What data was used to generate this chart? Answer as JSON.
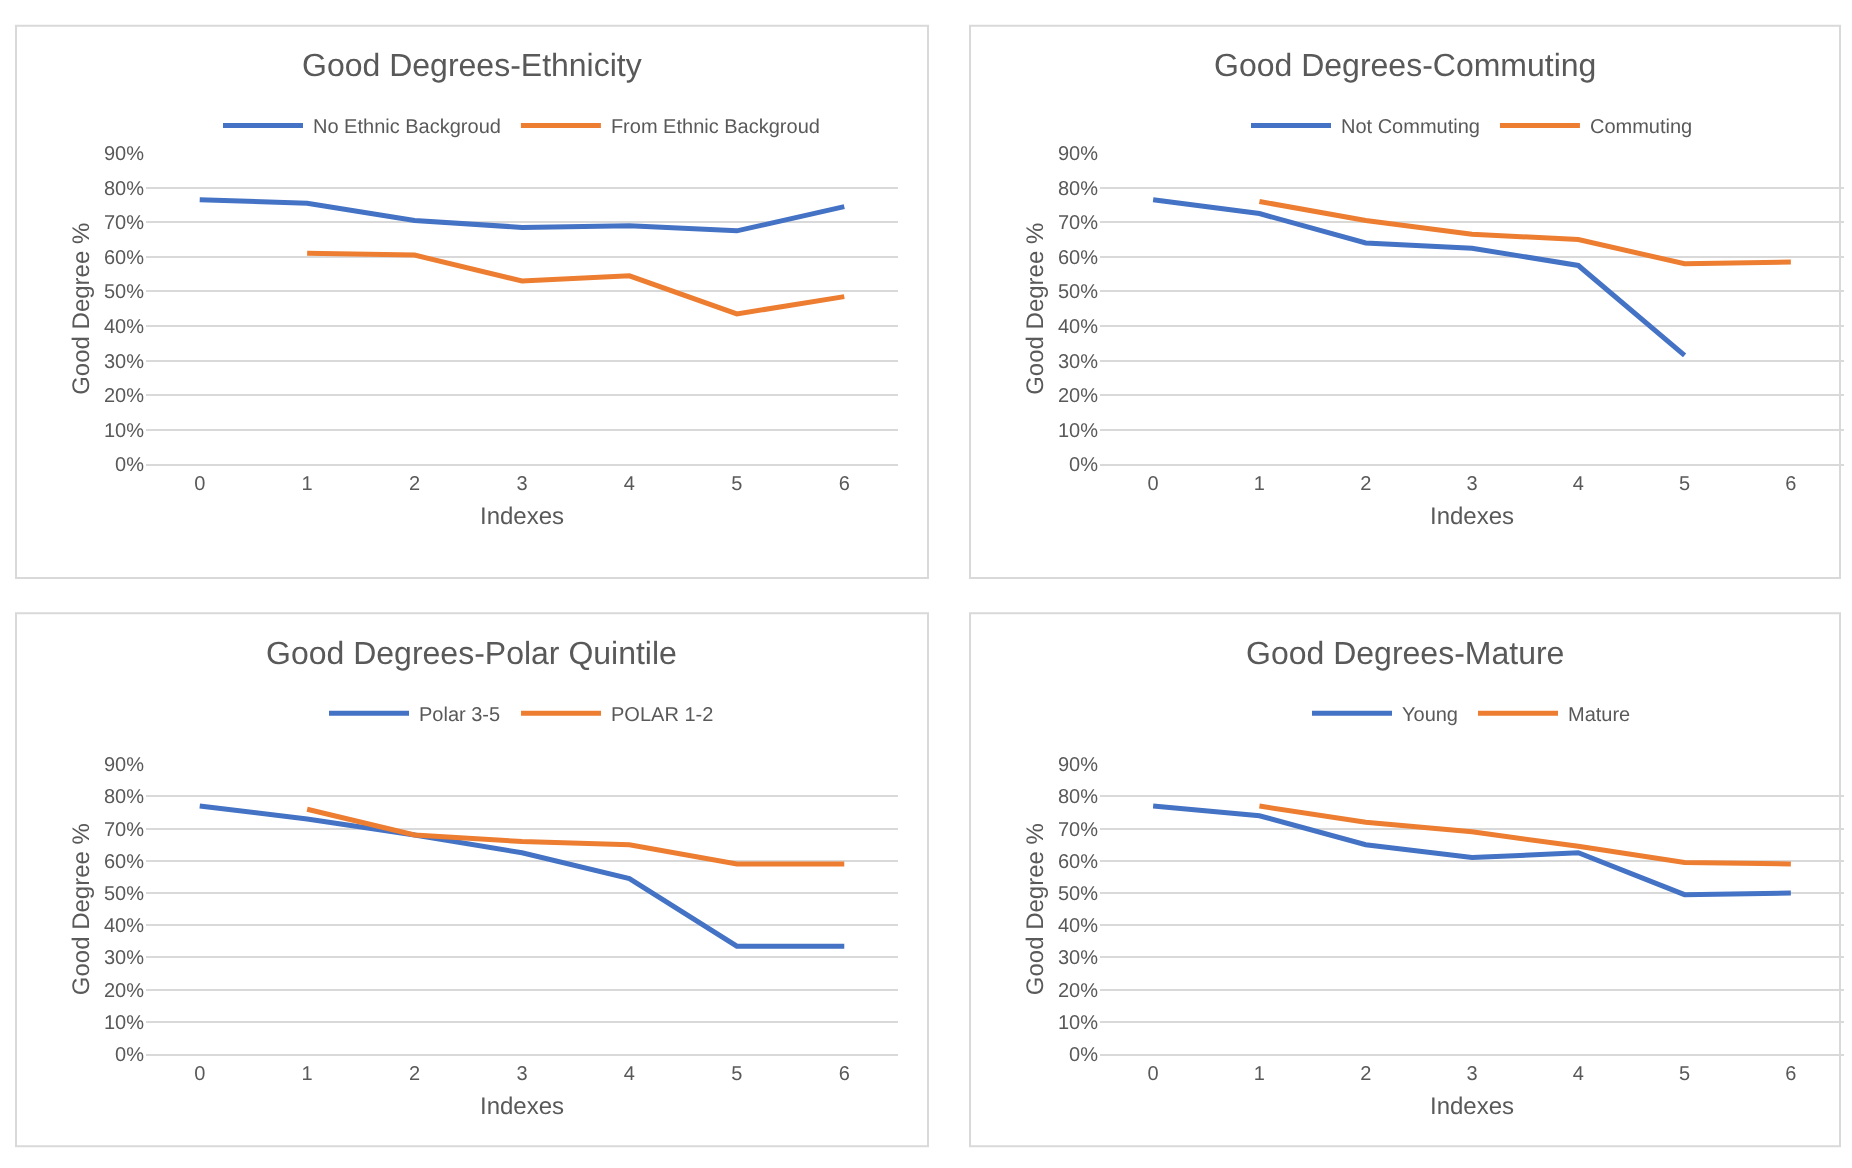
{
  "chart_data": [
    {
      "type": "line",
      "title": "Good Degrees-Ethnicity",
      "xlabel": "Indexes",
      "ylabel": "Good Degree %",
      "x": [
        0,
        1,
        2,
        3,
        4,
        5,
        6
      ],
      "xlim": [
        -0.5,
        6.5
      ],
      "xticks": [
        0,
        1,
        2,
        3,
        4,
        5,
        6
      ],
      "ylim": [
        0,
        90
      ],
      "yticks": [
        {
          "value": 0,
          "label": "0%"
        },
        {
          "value": 10,
          "label": "10%"
        },
        {
          "value": 20,
          "label": "20%"
        },
        {
          "value": 30,
          "label": "30%"
        },
        {
          "value": 40,
          "label": "40%"
        },
        {
          "value": 50,
          "label": "50%"
        },
        {
          "value": 60,
          "label": "60%"
        },
        {
          "value": 70,
          "label": "70%"
        },
        {
          "value": 80,
          "label": "80%"
        },
        {
          "value": 90,
          "label": "90%"
        }
      ],
      "grid": "y",
      "legend": "top",
      "marker": "none",
      "line_style": "solid",
      "series": [
        {
          "name": "No Ethnic Backgroud",
          "color": "#4472c4",
          "values": [
            76.5,
            75.5,
            70.5,
            68.5,
            69,
            67.5,
            74.5
          ]
        },
        {
          "name": "From Ethnic Backgroud",
          "color": "#ed7d31",
          "values": [
            null,
            61,
            60.5,
            53,
            54.5,
            43.5,
            48.5
          ]
        }
      ]
    },
    {
      "type": "line",
      "title": "Good Degrees-Commuting",
      "xlabel": "Indexes",
      "ylabel": "Good Degree %",
      "x": [
        0,
        1,
        2,
        3,
        4,
        5,
        6
      ],
      "xlim": [
        -0.5,
        6.5
      ],
      "xticks": [
        0,
        1,
        2,
        3,
        4,
        5,
        6
      ],
      "ylim": [
        0,
        90
      ],
      "yticks": [
        {
          "value": 0,
          "label": "0%"
        },
        {
          "value": 10,
          "label": "10%"
        },
        {
          "value": 20,
          "label": "20%"
        },
        {
          "value": 30,
          "label": "30%"
        },
        {
          "value": 40,
          "label": "40%"
        },
        {
          "value": 50,
          "label": "50%"
        },
        {
          "value": 60,
          "label": "60%"
        },
        {
          "value": 70,
          "label": "70%"
        },
        {
          "value": 80,
          "label": "80%"
        },
        {
          "value": 90,
          "label": "90%"
        }
      ],
      "grid": "y",
      "legend": "top",
      "marker": "none",
      "line_style": "solid",
      "series": [
        {
          "name": "Not Commuting",
          "color": "#4472c4",
          "values": [
            76.5,
            72.5,
            64,
            62.5,
            57.5,
            31.5,
            null
          ]
        },
        {
          "name": "Commuting",
          "color": "#ed7d31",
          "values": [
            null,
            76,
            70.5,
            66.5,
            65,
            58,
            58.5
          ]
        }
      ]
    },
    {
      "type": "line",
      "title": "Good Degrees-Polar Quintile",
      "xlabel": "Indexes",
      "ylabel": "Good Degree %",
      "x": [
        0,
        1,
        2,
        3,
        4,
        5,
        6
      ],
      "xlim": [
        -0.5,
        6.5
      ],
      "xticks": [
        0,
        1,
        2,
        3,
        4,
        5,
        6
      ],
      "ylim": [
        0,
        90
      ],
      "yticks": [
        {
          "value": 0,
          "label": "0%"
        },
        {
          "value": 10,
          "label": "10%"
        },
        {
          "value": 20,
          "label": "20%"
        },
        {
          "value": 30,
          "label": "30%"
        },
        {
          "value": 40,
          "label": "40%"
        },
        {
          "value": 50,
          "label": "50%"
        },
        {
          "value": 60,
          "label": "60%"
        },
        {
          "value": 70,
          "label": "70%"
        },
        {
          "value": 80,
          "label": "80%"
        },
        {
          "value": 90,
          "label": "90%"
        }
      ],
      "grid": "y",
      "legend": "top",
      "marker": "none",
      "line_style": "solid",
      "series": [
        {
          "name": "Polar 3-5",
          "color": "#4472c4",
          "values": [
            77,
            73,
            68,
            62.5,
            54.5,
            33.5,
            33.5
          ]
        },
        {
          "name": "POLAR 1-2",
          "color": "#ed7d31",
          "values": [
            null,
            76,
            68,
            66,
            65,
            59,
            59
          ]
        }
      ]
    },
    {
      "type": "line",
      "title": "Good Degrees-Mature",
      "xlabel": "Indexes",
      "ylabel": "Good Degree %",
      "x": [
        0,
        1,
        2,
        3,
        4,
        5,
        6
      ],
      "xlim": [
        -0.5,
        6.5
      ],
      "xticks": [
        0,
        1,
        2,
        3,
        4,
        5,
        6
      ],
      "ylim": [
        0,
        90
      ],
      "yticks": [
        {
          "value": 0,
          "label": "0%"
        },
        {
          "value": 10,
          "label": "10%"
        },
        {
          "value": 20,
          "label": "20%"
        },
        {
          "value": 30,
          "label": "30%"
        },
        {
          "value": 40,
          "label": "40%"
        },
        {
          "value": 50,
          "label": "50%"
        },
        {
          "value": 60,
          "label": "60%"
        },
        {
          "value": 70,
          "label": "70%"
        },
        {
          "value": 80,
          "label": "80%"
        },
        {
          "value": 90,
          "label": "90%"
        }
      ],
      "grid": "y",
      "legend": "top",
      "marker": "none",
      "line_style": "solid",
      "series": [
        {
          "name": "Young",
          "color": "#4472c4",
          "values": [
            77,
            74,
            65,
            61,
            62.5,
            49.5,
            50
          ]
        },
        {
          "name": "Mature",
          "color": "#ed7d31",
          "values": [
            null,
            77,
            72,
            69,
            64.5,
            59.5,
            59
          ]
        }
      ]
    }
  ]
}
